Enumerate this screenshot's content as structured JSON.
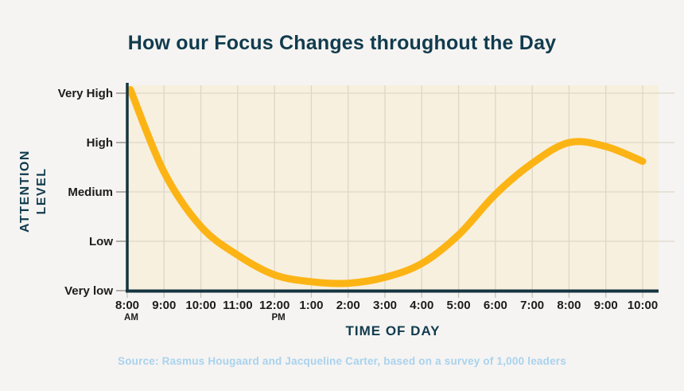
{
  "title": "How our Focus Changes throughout the Day",
  "y_axis": {
    "label_line1": "ATTENTION",
    "label_line2": "LEVEL",
    "tick_labels": [
      "Very High",
      "High",
      "Medium",
      "Low",
      "Very low"
    ]
  },
  "x_axis": {
    "label": "TIME OF DAY",
    "tick_labels": [
      "8:00",
      "9:00",
      "10:00",
      "11:00",
      "12:00",
      "1:00",
      "2:00",
      "3:00",
      "4:00",
      "5:00",
      "6:00",
      "7:00",
      "8:00",
      "9:00",
      "10:00"
    ],
    "sub_labels": {
      "0": "AM",
      "4": "PM"
    }
  },
  "source": "Source: Rasmus Hougaard and Jacqueline Carter, based on a survey of 1,000 leaders",
  "colors": {
    "page_bg": "#f5f4f2",
    "plot_bg": "#f8f0de",
    "gridline": "#ddd7c7",
    "axis": "#143440",
    "curve": "#fcb415",
    "heading": "#113b4e",
    "tick_text": "#1c1c1a",
    "y_tick_mark": "#9a968d",
    "x_tick_mark": "#c8c3b8",
    "source_text": "#a9d2ee"
  },
  "chart_data": {
    "type": "line",
    "title": "How our Focus Changes throughout the Day",
    "xlabel": "TIME OF DAY",
    "ylabel": "ATTENTION LEVEL",
    "x": [
      "8:00 AM",
      "9:00 AM",
      "10:00 AM",
      "11:00 AM",
      "12:00 PM",
      "1:00 PM",
      "2:00 PM",
      "3:00 PM",
      "4:00 PM",
      "5:00 PM",
      "6:00 PM",
      "7:00 PM",
      "8:00 PM",
      "9:00 PM",
      "10:00 PM"
    ],
    "y_scale": {
      "labels": [
        "Very low",
        "Low",
        "Medium",
        "High",
        "Very High"
      ],
      "values": [
        0,
        1,
        2,
        3,
        4
      ]
    },
    "values": [
      4.07,
      2.4,
      1.3,
      0.72,
      0.32,
      0.18,
      0.15,
      0.27,
      0.55,
      1.13,
      1.95,
      2.58,
      3.0,
      2.92,
      2.62
    ],
    "ylim": [
      0,
      4.3
    ],
    "grid": true,
    "legend": false,
    "line_color": "#fcb415",
    "line_width": 9
  }
}
